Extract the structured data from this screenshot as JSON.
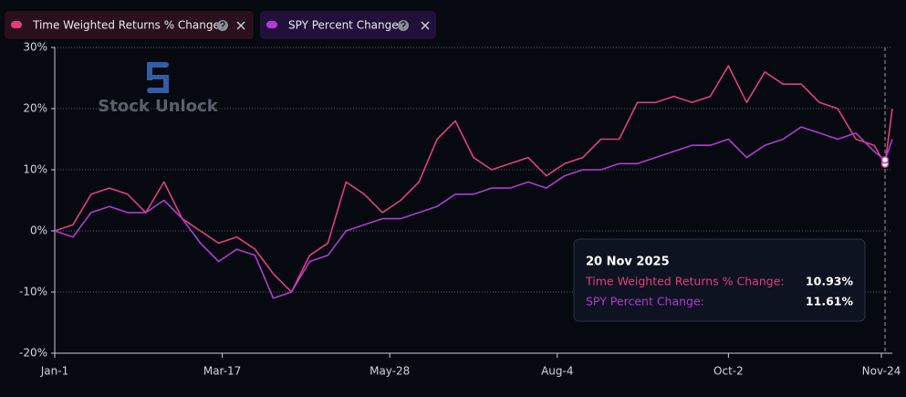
{
  "chart_data": {
    "type": "line",
    "watermark": "Stock Unlock",
    "x": [
      0,
      5,
      10,
      15,
      20,
      25,
      30,
      35,
      40,
      45,
      50,
      55,
      60,
      65,
      70,
      75,
      80,
      85,
      90,
      95,
      100,
      105,
      110,
      115,
      120,
      125,
      130,
      135,
      140,
      145,
      150,
      155,
      160,
      165,
      170,
      175,
      180,
      185,
      190,
      195,
      200,
      205,
      210,
      215,
      220,
      225,
      228,
      230
    ],
    "series": [
      {
        "name": "Time Weighted Returns % Change",
        "color": "#e23f7c",
        "values": [
          0,
          1,
          6,
          7,
          6,
          3,
          8,
          2,
          0,
          -2,
          -1,
          -3,
          -7,
          -10,
          -4,
          -2,
          8,
          6,
          3,
          5,
          8,
          15,
          18,
          12,
          10,
          11,
          12,
          9,
          11,
          12,
          15,
          15,
          21,
          21,
          22,
          21,
          22,
          27,
          21,
          26,
          24,
          24,
          21,
          20,
          15,
          14,
          10.93,
          20
        ]
      },
      {
        "name": "SPY Percent Change",
        "color": "#b23ad6",
        "values": [
          0,
          -1,
          3,
          4,
          3,
          3,
          5,
          2,
          -2,
          -5,
          -3,
          -4,
          -11,
          -10,
          -5,
          -4,
          0,
          1,
          2,
          2,
          3,
          4,
          6,
          6,
          7,
          7,
          8,
          7,
          9,
          10,
          10,
          11,
          11,
          12,
          13,
          14,
          14,
          15,
          12,
          14,
          15,
          17,
          16,
          15,
          16,
          13,
          11.61,
          15
        ]
      }
    ],
    "xlim": [
      0,
      230
    ],
    "xticks": [
      {
        "value": 0,
        "label": "Jan-1"
      },
      {
        "value": 46,
        "label": "Mar-17"
      },
      {
        "value": 92,
        "label": "May-28"
      },
      {
        "value": 138,
        "label": "Aug-4"
      },
      {
        "value": 185,
        "label": "Oct-2"
      },
      {
        "value": 227,
        "label": "Nov-24"
      }
    ],
    "ylim": [
      -20,
      30
    ],
    "yticks": [
      {
        "value": -20,
        "label": "-20%"
      },
      {
        "value": -10,
        "label": "-10%"
      },
      {
        "value": 0,
        "label": "0%"
      },
      {
        "value": 10,
        "label": "10%"
      },
      {
        "value": 20,
        "label": "20%"
      },
      {
        "value": 30,
        "label": "30%"
      }
    ],
    "grid": true,
    "tooltip": {
      "x": 228,
      "date": "20 Nov 2025",
      "rows": [
        {
          "label": "Time Weighted Returns % Change:",
          "value": "10.93%"
        },
        {
          "label": "SPY Percent Change:",
          "value": "11.61%"
        }
      ]
    }
  }
}
